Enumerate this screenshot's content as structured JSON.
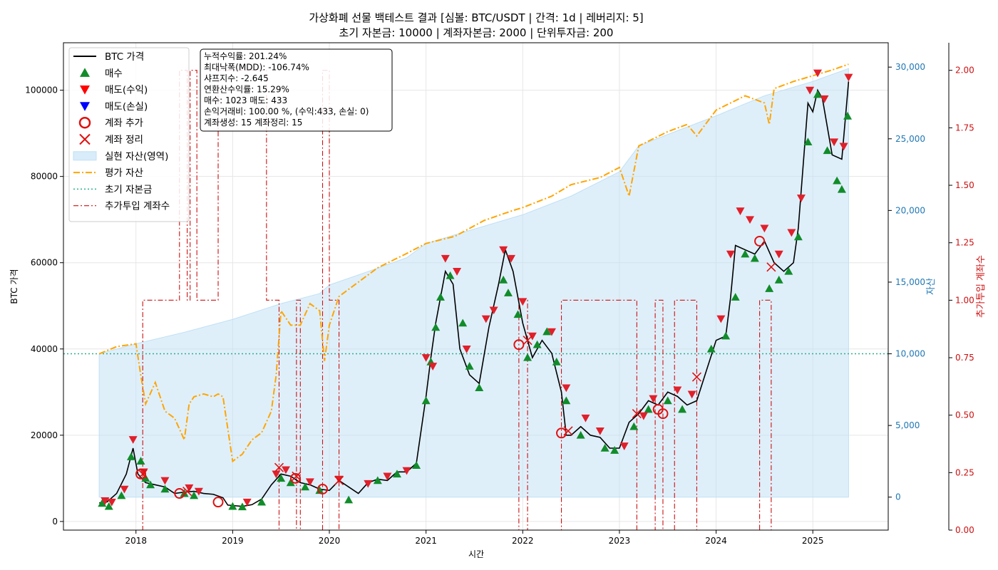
{
  "chart_data": {
    "type": "line",
    "title": "가상화폐 선물 백테스트 결과 [심볼: BTC/USDT | 간격: 1d | 레버리지: 5]",
    "subtitle": "초기 자본금: 10000 | 계좌자본금: 2000 | 단위투자금: 200",
    "xlabel": "시간",
    "ylabel_left": "BTC 가격",
    "ylabel_right1": "자산",
    "ylabel_right2": "추가투입 계좌수",
    "x_ticks": [
      "2018",
      "2019",
      "2020",
      "2021",
      "2022",
      "2023",
      "2024",
      "2025"
    ],
    "x_range": [
      2017.25,
      2025.78
    ],
    "y_left": {
      "range": [
        -2000,
        111000
      ],
      "ticks": [
        0,
        20000,
        40000,
        60000,
        80000,
        100000
      ],
      "tick_labels": [
        "0",
        "20000",
        "40000",
        "60000",
        "80000",
        "100000"
      ]
    },
    "y_right1": {
      "range": [
        -2300,
        31700
      ],
      "ticks": [
        0,
        5000,
        10000,
        15000,
        20000,
        25000,
        30000
      ],
      "tick_labels": [
        "0",
        "5,000",
        "10,000",
        "15,000",
        "20,000",
        "25,000",
        "30,000"
      ]
    },
    "y_right2": {
      "range": [
        0,
        2.12
      ],
      "ticks": [
        0,
        0.25,
        0.5,
        0.75,
        1.0,
        1.25,
        1.5,
        1.75,
        2.0
      ],
      "tick_labels": [
        "0.00",
        "0.25",
        "0.50",
        "0.75",
        "1.00",
        "1.25",
        "1.50",
        "1.75",
        "2.00"
      ]
    },
    "grid": true,
    "legend_position": "top-left",
    "legend": [
      "BTC 가격",
      "매수",
      "매도(수익)",
      "매도(손실)",
      "계좌 추가",
      "계좌 정리",
      "실현 자산(영역)",
      "평가 자산",
      "초기 자본금",
      "추가투입 계좌수"
    ],
    "stats": [
      "누적수익률: 201.24%",
      "최대낙폭(MDD): -106.74%",
      "샤프지수: -2.645",
      "연환산수익률: 15.29%",
      "매수: 1023   매도: 433",
      "손익거래비: 100.00 %, (수익:433, 손실: 0)",
      "계좌생성: 15   계좌정리: 15"
    ],
    "initial_capital": 10000,
    "colors": {
      "price": "#000000",
      "buy": "#118c2a",
      "sell_profit": "#e0202a",
      "sell_loss": "#0000ff",
      "account_add": "#e01010",
      "account_close": "#e01010",
      "realized_fill": "#bfe0f5",
      "equity": "#ffa500",
      "initial": "#2ab08c",
      "accounts": "#cc1010"
    },
    "series": [
      {
        "name": "BTC 가격",
        "x": [
          2017.62,
          2017.7,
          2017.8,
          2017.9,
          2017.97,
          2018.02,
          2018.1,
          2018.2,
          2018.3,
          2018.4,
          2018.5,
          2018.6,
          2018.7,
          2018.8,
          2018.9,
          2018.95,
          2019.0,
          2019.1,
          2019.2,
          2019.3,
          2019.4,
          2019.5,
          2019.6,
          2019.7,
          2019.8,
          2019.9,
          2020.0,
          2020.1,
          2020.2,
          2020.3,
          2020.4,
          2020.5,
          2020.6,
          2020.7,
          2020.8,
          2020.9,
          2021.0,
          2021.05,
          2021.1,
          2021.2,
          2021.28,
          2021.35,
          2021.45,
          2021.55,
          2021.65,
          2021.75,
          2021.82,
          2021.9,
          2022.0,
          2022.1,
          2022.2,
          2022.3,
          2022.4,
          2022.45,
          2022.5,
          2022.6,
          2022.7,
          2022.8,
          2022.9,
          2023.0,
          2023.1,
          2023.2,
          2023.3,
          2023.4,
          2023.5,
          2023.6,
          2023.7,
          2023.8,
          2023.9,
          2024.0,
          2024.1,
          2024.15,
          2024.2,
          2024.3,
          2024.4,
          2024.5,
          2024.6,
          2024.7,
          2024.8,
          2024.85,
          2024.95,
          2025.0,
          2025.05,
          2025.1,
          2025.2,
          2025.3,
          2025.37
        ],
        "values": [
          4300,
          4500,
          6500,
          11000,
          17000,
          11000,
          9000,
          8500,
          8000,
          6500,
          6800,
          7000,
          6500,
          6300,
          5500,
          3800,
          3700,
          3500,
          3900,
          5200,
          8500,
          11000,
          10500,
          9000,
          8500,
          7500,
          7200,
          9500,
          8000,
          6500,
          9000,
          9800,
          9500,
          11500,
          11500,
          13500,
          29000,
          38000,
          46000,
          58000,
          55000,
          40000,
          34000,
          32000,
          45000,
          55000,
          63000,
          58000,
          46000,
          38000,
          42000,
          39000,
          30000,
          20000,
          20000,
          22000,
          20000,
          19500,
          17000,
          17000,
          23000,
          25000,
          28000,
          27000,
          30000,
          29000,
          27000,
          28000,
          35000,
          42000,
          43000,
          52000,
          64000,
          63000,
          62000,
          65000,
          60000,
          58000,
          60000,
          68000,
          97000,
          95000,
          100000,
          98000,
          85000,
          84000,
          102000
        ]
      },
      {
        "name": "평가 자산",
        "x": [
          2017.62,
          2017.8,
          2018.0,
          2018.05,
          2018.1,
          2018.2,
          2018.3,
          2018.4,
          2018.5,
          2018.55,
          2018.6,
          2018.7,
          2018.8,
          2018.85,
          2018.9,
          2019.0,
          2019.1,
          2019.2,
          2019.3,
          2019.4,
          2019.45,
          2019.5,
          2019.6,
          2019.7,
          2019.8,
          2019.9,
          2019.95,
          2020.0,
          2020.05,
          2020.1,
          2020.3,
          2020.5,
          2020.8,
          2021.0,
          2021.3,
          2021.6,
          2021.9,
          2022.0,
          2022.3,
          2022.5,
          2022.8,
          2023.0,
          2023.1,
          2023.2,
          2023.5,
          2023.7,
          2023.8,
          2024.0,
          2024.3,
          2024.5,
          2024.55,
          2024.6,
          2024.8,
          2025.0,
          2025.2,
          2025.37
        ],
        "values": [
          10000,
          10500,
          10700,
          8500,
          6500,
          8000,
          6000,
          5500,
          4000,
          6500,
          7000,
          7200,
          7000,
          7200,
          7000,
          2500,
          3000,
          4000,
          4500,
          6000,
          8500,
          13000,
          12000,
          12000,
          13500,
          13000,
          9500,
          12000,
          13000,
          14000,
          15000,
          16000,
          17000,
          17700,
          18200,
          19300,
          20000,
          20200,
          21000,
          21800,
          22300,
          23000,
          21000,
          24500,
          25500,
          26000,
          25200,
          27000,
          28000,
          27500,
          26000,
          28500,
          29000,
          29400,
          29800,
          30200
        ]
      },
      {
        "name": "실현 자산(영역)",
        "x": [
          2017.62,
          2018.0,
          2018.5,
          2019.0,
          2019.5,
          2019.9,
          2020.0,
          2020.3,
          2020.8,
          2021.0,
          2021.5,
          2022.0,
          2022.5,
          2023.0,
          2023.2,
          2023.5,
          2024.0,
          2024.5,
          2025.0,
          2025.37
        ],
        "values": [
          10000,
          10700,
          11500,
          12400,
          13500,
          14200,
          14800,
          15500,
          16700,
          17700,
          18700,
          19700,
          21000,
          22700,
          24500,
          25300,
          26600,
          28000,
          29000,
          29900
        ]
      },
      {
        "name": "추가투입 계좌수",
        "x": [
          2017.62,
          2018.07,
          2018.07,
          2018.45,
          2018.45,
          2018.53,
          2018.53,
          2018.56,
          2018.56,
          2018.63,
          2018.63,
          2018.85,
          2018.85,
          2019.35,
          2019.35,
          2019.48,
          2019.48,
          2019.66,
          2019.66,
          2019.7,
          2019.7,
          2019.93,
          2019.93,
          2020.0,
          2020.0,
          2020.1,
          2020.1,
          2021.96,
          2021.96,
          2022.05,
          2022.05,
          2022.1,
          2022.1,
          2022.4,
          2022.4,
          2022.47,
          2022.47,
          2023.18,
          2023.18,
          2023.37,
          2023.37,
          2023.45,
          2023.45,
          2023.57,
          2023.57,
          2023.8,
          2023.8,
          2024.45,
          2024.45,
          2024.57,
          2024.57,
          2025.37
        ],
        "values": [
          0,
          0,
          1,
          1,
          2,
          2,
          1,
          1,
          2,
          2,
          1,
          1,
          2,
          2,
          1,
          1,
          0,
          0,
          1,
          1,
          0,
          0,
          2,
          2,
          1,
          1,
          0,
          0,
          1,
          1,
          0,
          0,
          0,
          0,
          1,
          1,
          1,
          1,
          0,
          0,
          1,
          1,
          0,
          0,
          1,
          1,
          0,
          0,
          1,
          1,
          0,
          0
        ]
      },
      {
        "name": "매수",
        "x": [
          2017.65,
          2017.72,
          2017.85,
          2017.95,
          2018.05,
          2018.1,
          2018.15,
          2018.3,
          2018.5,
          2018.6,
          2019.0,
          2019.1,
          2019.3,
          2019.5,
          2019.6,
          2019.75,
          2019.9,
          2020.2,
          2020.5,
          2020.7,
          2020.9,
          2021.0,
          2021.05,
          2021.1,
          2021.15,
          2021.25,
          2021.38,
          2021.45,
          2021.55,
          2021.8,
          2021.85,
          2021.95,
          2022.05,
          2022.15,
          2022.25,
          2022.35,
          2022.45,
          2022.6,
          2022.85,
          2022.95,
          2023.15,
          2023.3,
          2023.5,
          2023.65,
          2023.95,
          2024.1,
          2024.2,
          2024.3,
          2024.4,
          2024.55,
          2024.65,
          2024.75,
          2024.85,
          2024.95,
          2025.05,
          2025.15,
          2025.25,
          2025.3,
          2025.36
        ],
        "values": [
          4200,
          3500,
          6000,
          15000,
          14000,
          10000,
          8500,
          7500,
          6500,
          6000,
          3500,
          3400,
          4500,
          10000,
          9000,
          8000,
          7200,
          5000,
          9500,
          11000,
          13000,
          28000,
          37000,
          45000,
          52000,
          57000,
          46000,
          36000,
          31000,
          56000,
          53000,
          48000,
          38000,
          41000,
          44000,
          37000,
          28000,
          20000,
          17000,
          16500,
          22000,
          26000,
          28000,
          26000,
          40000,
          43000,
          52000,
          62000,
          61000,
          54000,
          56000,
          58000,
          66000,
          88000,
          99000,
          86000,
          79000,
          77000,
          94000
        ]
      },
      {
        "name": "매도(수익)",
        "x": [
          2017.68,
          2017.75,
          2017.88,
          2017.97,
          2018.08,
          2018.3,
          2018.55,
          2018.65,
          2019.15,
          2019.45,
          2019.55,
          2019.8,
          2020.1,
          2020.4,
          2020.6,
          2020.8,
          2021.0,
          2021.07,
          2021.2,
          2021.32,
          2021.42,
          2021.62,
          2021.7,
          2021.8,
          2021.88,
          2022.0,
          2022.1,
          2022.3,
          2022.45,
          2022.65,
          2022.8,
          2023.05,
          2023.25,
          2023.35,
          2023.6,
          2023.75,
          2024.05,
          2024.15,
          2024.25,
          2024.35,
          2024.5,
          2024.65,
          2024.78,
          2024.88,
          2024.97,
          2025.05,
          2025.12,
          2025.22,
          2025.32,
          2025.37
        ],
        "values": [
          4800,
          4500,
          7500,
          19000,
          11500,
          9500,
          7800,
          7000,
          4500,
          11000,
          12000,
          9200,
          9800,
          8800,
          10500,
          11800,
          38000,
          36000,
          61000,
          58000,
          40000,
          47000,
          49000,
          63000,
          61000,
          51000,
          43000,
          44000,
          31000,
          24000,
          21000,
          17500,
          24500,
          28500,
          30500,
          29500,
          47000,
          62000,
          72000,
          70000,
          68000,
          62000,
          67000,
          75000,
          100000,
          104000,
          98000,
          88000,
          87000,
          103000
        ]
      },
      {
        "name": "계좌 추가",
        "x": [
          2018.05,
          2018.45,
          2018.85,
          2019.65,
          2019.93,
          2021.96,
          2022.4,
          2023.4,
          2023.45,
          2024.45
        ],
        "values": [
          11000,
          6500,
          4500,
          10000,
          7500,
          41000,
          20500,
          26000,
          25000,
          65000
        ]
      },
      {
        "name": "계좌 정리",
        "x": [
          2018.07,
          2018.53,
          2019.48,
          2019.66,
          2020.1,
          2022.05,
          2022.47,
          2023.18,
          2023.8,
          2024.57
        ],
        "values": [
          11000,
          7000,
          12500,
          10500,
          9500,
          42000,
          21000,
          25000,
          33500,
          59000
        ]
      }
    ]
  }
}
